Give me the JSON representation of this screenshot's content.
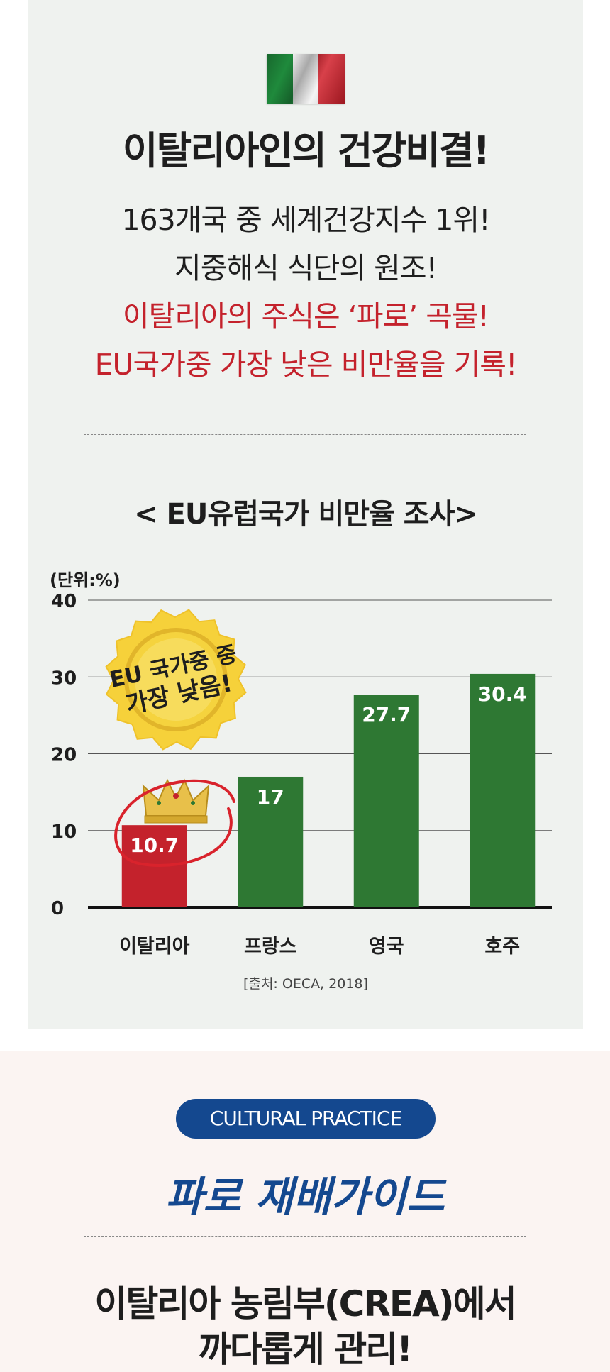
{
  "header": {
    "flag_colors": [
      "#1f8a3c",
      "#f2f2f2",
      "#d11f2a"
    ],
    "main_title": "이탈리아인의 건강비결!",
    "lines": [
      "163개국 중 세계건강지수 1위!",
      "지중해식 식단의 원조!",
      "이탈리아의 주식은 ‘파로’ 곡물!",
      "EU국가중 가장 낮은 비만율을 기록!"
    ]
  },
  "chart_data": {
    "type": "bar",
    "title": "< EU유럽국가 비만율 조사>",
    "unit_label": "(단위:%)",
    "categories": [
      "이탈리아",
      "프랑스",
      "영국",
      "호주"
    ],
    "values": [
      10.7,
      17,
      27.7,
      30.4
    ],
    "value_labels": [
      "10.7",
      "17",
      "27.7",
      "30.4"
    ],
    "ylim": [
      0,
      40
    ],
    "yticks": [
      "0",
      "10",
      "20",
      "30",
      "40"
    ],
    "grid": true,
    "colors": {
      "highlight": "#c4222c",
      "default": "#2e7833"
    },
    "badge": {
      "line1": "EU 국가중 중",
      "line2": "가장 낮음!"
    },
    "source": "[출처: OECA, 2018]"
  },
  "section2": {
    "pill": "CULTURAL PRACTICE",
    "title": "파로 재배가이드",
    "bottom_lines": [
      "이탈리아 농림부(CREA)에서",
      "까다롭게 관리!"
    ]
  }
}
